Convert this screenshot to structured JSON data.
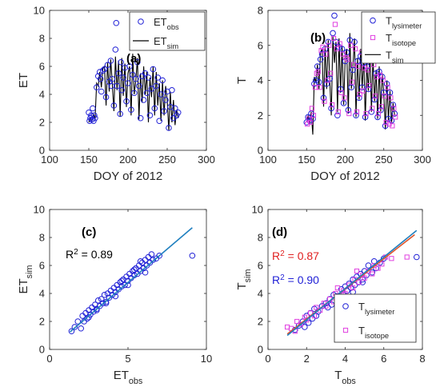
{
  "chart_data": [
    {
      "type": "scatter",
      "panel_label": "(a)",
      "xlabel": "DOY of 2012",
      "ylabel": "ET",
      "xlim": [
        100,
        300
      ],
      "ylim": [
        0,
        10
      ],
      "xticks": [
        "100",
        "150",
        "200",
        "250",
        "300"
      ],
      "yticks": [
        "0",
        "2",
        "4",
        "6",
        "8",
        "10"
      ],
      "legend_position": "top-right",
      "series": [
        {
          "name": "ET",
          "name_sub": "obs",
          "kind": "points",
          "marker": "circle",
          "color": "#1f1fd6",
          "x": [
            150,
            151,
            152,
            153,
            154,
            155,
            156,
            157,
            158,
            160,
            162,
            164,
            165,
            166,
            168,
            170,
            172,
            174,
            176,
            178,
            179,
            180,
            182,
            184,
            185,
            186,
            188,
            190,
            191,
            192,
            194,
            196,
            198,
            200,
            202,
            204,
            206,
            208,
            210,
            212,
            214,
            216,
            218,
            220,
            222,
            224,
            226,
            228,
            230,
            232,
            234,
            236,
            238,
            240,
            242,
            244,
            246,
            248,
            250,
            252,
            254,
            256,
            258,
            260,
            262,
            264
          ],
          "y": [
            2.7,
            2.1,
            2.3,
            2.5,
            2.2,
            3.0,
            2.1,
            2.5,
            2.3,
            4.5,
            5.3,
            5.6,
            5.1,
            4.2,
            5.7,
            5.8,
            3.8,
            6.1,
            4.9,
            6.4,
            4.6,
            5.1,
            3.2,
            7.2,
            9.1,
            4.6,
            5.5,
            2.6,
            6.3,
            4.3,
            5.2,
            5.9,
            3.5,
            4.8,
            6.0,
            2.9,
            5.4,
            4.1,
            5.1,
            6.3,
            4.6,
            2.3,
            5.3,
            3.6,
            5.5,
            4.1,
            5.2,
            2.5,
            4.4,
            5.8,
            3.0,
            4.6,
            5.2,
            2.1,
            4.0,
            5.0,
            2.8,
            3.6,
            4.2,
            1.6,
            3.1,
            4.3,
            2.3,
            3.0,
            2.5,
            2.7
          ]
        },
        {
          "name": "ET",
          "name_sub": "sim",
          "kind": "line",
          "color": "#000000",
          "x": [
            150,
            152,
            154,
            156,
            158,
            160,
            162,
            164,
            166,
            168,
            170,
            172,
            174,
            176,
            178,
            180,
            182,
            184,
            186,
            188,
            190,
            192,
            194,
            196,
            198,
            200,
            202,
            204,
            206,
            208,
            210,
            212,
            214,
            216,
            218,
            220,
            222,
            224,
            226,
            228,
            230,
            232,
            234,
            236,
            238,
            240,
            242,
            244,
            246,
            248,
            250,
            252,
            254,
            256,
            258,
            260,
            262,
            264
          ],
          "y": [
            2.0,
            2.3,
            2.1,
            2.6,
            2.2,
            4.8,
            4.6,
            5.6,
            4.5,
            5.9,
            6.0,
            3.2,
            6.3,
            4.2,
            6.5,
            4.7,
            2.8,
            6.7,
            4.3,
            6.4,
            2.4,
            6.6,
            3.9,
            6.2,
            3.1,
            5.5,
            6.0,
            2.5,
            6.9,
            4.0,
            5.0,
            6.6,
            2.2,
            5.5,
            3.4,
            6.0,
            4.0,
            5.6,
            2.0,
            5.2,
            3.8,
            6.0,
            2.5,
            5.6,
            3.2,
            4.8,
            2.1,
            5.0,
            2.5,
            4.6,
            3.6,
            1.4,
            4.2,
            2.0,
            3.6,
            1.8,
            2.9,
            2.3
          ]
        }
      ]
    },
    {
      "type": "scatter",
      "panel_label": "(b)",
      "xlabel": "DOY of 2012",
      "ylabel": "T",
      "xlim": [
        100,
        300
      ],
      "ylim": [
        0,
        8
      ],
      "xticks": [
        "100",
        "150",
        "200",
        "250",
        "300"
      ],
      "yticks": [
        "0",
        "2",
        "4",
        "6",
        "8"
      ],
      "legend_position": "top-right",
      "series": [
        {
          "name": "T",
          "name_sub": "lysimeter",
          "kind": "points",
          "marker": "circle",
          "color": "#1f1fd6",
          "x": [
            150,
            152,
            154,
            156,
            158,
            160,
            162,
            164,
            166,
            168,
            170,
            172,
            174,
            176,
            178,
            180,
            182,
            184,
            186,
            188,
            190,
            192,
            194,
            196,
            198,
            200,
            202,
            204,
            206,
            208,
            210,
            212,
            214,
            216,
            218,
            220,
            222,
            224,
            226,
            228,
            230,
            232,
            234,
            236,
            238,
            240,
            242,
            244,
            246,
            248,
            250,
            252,
            254,
            256,
            258,
            260,
            262,
            264
          ],
          "y": [
            1.6,
            1.9,
            1.7,
            2.1,
            1.8,
            3.8,
            4.0,
            4.8,
            3.9,
            5.2,
            5.5,
            3.0,
            5.8,
            3.8,
            6.2,
            4.1,
            2.4,
            6.7,
            7.7,
            6.2,
            2.0,
            5.9,
            3.5,
            5.8,
            2.7,
            5.1,
            5.6,
            2.3,
            6.3,
            3.6,
            4.6,
            6.2,
            2.0,
            5.1,
            3.0,
            5.4,
            3.6,
            5.0,
            1.9,
            4.8,
            3.5,
            5.5,
            2.2,
            5.2,
            2.9,
            4.4,
            1.9,
            4.5,
            2.3,
            4.2,
            3.3,
            1.4,
            3.8,
            1.8,
            3.3,
            1.7,
            2.6,
            2.1
          ]
        },
        {
          "name": "T",
          "name_sub": "isotope",
          "kind": "points",
          "marker": "square",
          "color": "#e040e0",
          "x": [
            151,
            153,
            155,
            157,
            159,
            161,
            163,
            165,
            167,
            169,
            171,
            173,
            175,
            177,
            179,
            181,
            183,
            185,
            187,
            189,
            191,
            193,
            195,
            197,
            199,
            201,
            203,
            205,
            207,
            209,
            211,
            213,
            215,
            217,
            219,
            221,
            223,
            225,
            227,
            229,
            231,
            233,
            235,
            237,
            239,
            241,
            243,
            245,
            247,
            249,
            251,
            253,
            255,
            257,
            259,
            261,
            263,
            265
          ],
          "y": [
            1.5,
            1.8,
            1.6,
            2.4,
            2.0,
            3.6,
            4.4,
            4.5,
            3.6,
            5.7,
            5.9,
            2.8,
            5.5,
            4.0,
            6.0,
            4.4,
            2.6,
            6.4,
            7.2,
            5.8,
            2.2,
            6.1,
            3.3,
            5.5,
            3.0,
            5.3,
            5.2,
            2.1,
            6.0,
            3.9,
            4.9,
            5.8,
            2.2,
            4.8,
            3.2,
            5.6,
            3.4,
            4.7,
            2.1,
            4.6,
            3.7,
            5.2,
            2.4,
            4.9,
            3.1,
            4.2,
            2.1,
            4.3,
            2.5,
            4.0,
            3.1,
            1.6,
            3.6,
            1.5,
            3.0,
            1.4,
            2.4,
            1.9
          ]
        },
        {
          "name": "T",
          "name_sub": "sim",
          "kind": "line",
          "color": "#000000",
          "x": [
            150,
            152,
            154,
            156,
            158,
            160,
            162,
            164,
            166,
            168,
            170,
            172,
            174,
            176,
            178,
            180,
            182,
            184,
            186,
            188,
            190,
            192,
            194,
            196,
            198,
            200,
            202,
            204,
            206,
            208,
            210,
            212,
            214,
            216,
            218,
            220,
            222,
            224,
            226,
            228,
            230,
            232,
            234,
            236,
            238,
            240,
            242,
            244,
            246,
            248,
            250,
            252,
            254,
            256,
            258,
            260,
            262,
            264
          ],
          "y": [
            1.6,
            2.0,
            1.5,
            2.2,
            0.9,
            4.2,
            3.9,
            4.9,
            3.5,
            5.6,
            5.8,
            2.5,
            6.0,
            3.5,
            6.3,
            4.0,
            2.0,
            6.5,
            5.0,
            6.2,
            2.2,
            6.4,
            3.3,
            6.0,
            2.6,
            5.3,
            5.8,
            2.1,
            6.7,
            3.5,
            4.8,
            6.4,
            1.9,
            5.3,
            2.9,
            5.8,
            3.5,
            5.4,
            1.7,
            5.0,
            3.4,
            5.8,
            2.2,
            5.4,
            2.8,
            4.6,
            1.8,
            4.8,
            2.2,
            4.4,
            3.2,
            1.2,
            4.0,
            1.7,
            3.4,
            1.5,
            2.7,
            2.0
          ]
        }
      ]
    },
    {
      "type": "scatter",
      "panel_label": "(c)",
      "xlabel": "ET",
      "xlabel_sub": "obs",
      "ylabel": "ET",
      "ylabel_sub": "sim",
      "xlim": [
        0,
        10
      ],
      "ylim": [
        0,
        10
      ],
      "xticks": [
        "0",
        "5",
        "10"
      ],
      "yticks": [
        "0",
        "2",
        "4",
        "6",
        "8",
        "10"
      ],
      "annotations": [
        {
          "text": "R",
          "sup": "2",
          "rest": " = 0.89",
          "color": "#000000"
        }
      ],
      "series": [
        {
          "name": "",
          "kind": "points",
          "marker": "circle",
          "color": "#1f1fd6",
          "x": [
            1.4,
            1.6,
            1.8,
            2.0,
            2.1,
            2.2,
            2.3,
            2.4,
            2.5,
            2.6,
            2.7,
            2.8,
            2.9,
            3.0,
            3.1,
            3.2,
            3.3,
            3.4,
            3.5,
            3.6,
            3.7,
            3.8,
            3.9,
            4.0,
            4.1,
            4.2,
            4.3,
            4.4,
            4.5,
            4.6,
            4.7,
            4.8,
            4.9,
            5.0,
            5.1,
            5.2,
            5.3,
            5.4,
            5.5,
            5.6,
            5.7,
            5.8,
            5.9,
            6.0,
            6.1,
            6.2,
            6.3,
            6.4,
            6.5,
            6.6,
            6.8,
            7.0,
            9.1,
            2.5,
            3.0,
            3.6,
            4.2,
            4.6,
            5.0,
            5.4,
            5.8,
            6.1
          ],
          "y": [
            1.3,
            1.6,
            2.0,
            1.5,
            2.4,
            2.0,
            2.6,
            2.2,
            2.8,
            2.5,
            3.0,
            2.7,
            3.2,
            2.9,
            3.5,
            3.1,
            3.6,
            3.3,
            3.9,
            3.4,
            4.0,
            3.7,
            4.2,
            3.9,
            4.4,
            4.1,
            4.6,
            4.3,
            4.8,
            4.5,
            5.0,
            4.6,
            5.2,
            4.9,
            5.4,
            5.1,
            5.6,
            5.3,
            5.8,
            5.4,
            6.0,
            5.6,
            6.2,
            5.8,
            6.4,
            6.0,
            6.6,
            6.2,
            6.8,
            6.4,
            6.5,
            6.7,
            6.7,
            2.3,
            2.8,
            3.3,
            3.8,
            4.9,
            4.6,
            5.7,
            6.3,
            5.5
          ]
        },
        {
          "name": "",
          "kind": "fit",
          "color": "#1f7fbf",
          "x": [
            1.3,
            9.1
          ],
          "y": [
            1.25,
            8.7
          ]
        }
      ]
    },
    {
      "type": "scatter",
      "panel_label": "(d)",
      "xlabel": "T",
      "xlabel_sub": "obs",
      "ylabel": "T",
      "ylabel_sub": "sim",
      "xlim": [
        0,
        8
      ],
      "ylim": [
        0,
        10
      ],
      "xticks": [
        "0",
        "2",
        "4",
        "6",
        "8"
      ],
      "yticks": [
        "0",
        "2",
        "4",
        "6",
        "8",
        "10"
      ],
      "legend_position": "bottom-right",
      "annotations": [
        {
          "text": "R",
          "sup": "2",
          "rest": " = 0.87",
          "color": "#e02020"
        },
        {
          "text": "R",
          "sup": "2",
          "rest": " = 0.90",
          "color": "#1f1fd6"
        }
      ],
      "series": [
        {
          "name": "T",
          "name_sub": "lysimeter",
          "kind": "points",
          "marker": "circle",
          "color": "#1f1fd6",
          "x": [
            1.4,
            1.6,
            1.8,
            1.9,
            2.0,
            2.1,
            2.2,
            2.3,
            2.4,
            2.6,
            2.8,
            3.0,
            3.2,
            3.3,
            3.4,
            3.6,
            3.8,
            3.9,
            4.0,
            4.1,
            4.2,
            4.3,
            4.4,
            4.5,
            4.6,
            4.7,
            4.8,
            4.9,
            5.0,
            5.1,
            5.2,
            5.4,
            5.5,
            5.6,
            5.8,
            6.0,
            7.7,
            2.5,
            3.1,
            3.7,
            4.4,
            4.9
          ],
          "y": [
            1.4,
            1.7,
            2.0,
            1.6,
            2.4,
            1.9,
            2.6,
            2.2,
            2.9,
            2.7,
            3.1,
            3.3,
            3.6,
            3.2,
            3.9,
            3.8,
            4.3,
            3.9,
            4.5,
            4.2,
            4.7,
            4.4,
            5.0,
            4.6,
            5.2,
            4.8,
            5.4,
            5.0,
            5.6,
            5.3,
            6.0,
            5.5,
            6.3,
            5.8,
            6.2,
            6.5,
            6.6,
            2.4,
            3.0,
            3.5,
            4.1,
            4.8
          ]
        },
        {
          "name": "T",
          "name_sub": "isotope",
          "kind": "points",
          "marker": "square",
          "color": "#e040e0",
          "x": [
            1.0,
            1.2,
            1.4,
            1.5,
            1.7,
            1.9,
            2.0,
            2.2,
            2.4,
            2.5,
            2.7,
            2.9,
            3.0,
            3.2,
            3.4,
            3.5,
            3.7,
            3.9,
            4.0,
            4.2,
            4.4,
            4.5,
            4.7,
            4.9,
            5.0,
            5.2,
            5.4,
            5.5,
            5.7,
            5.9,
            6.1,
            6.4,
            7.2,
            3.6,
            4.6
          ],
          "y": [
            1.6,
            1.5,
            1.3,
            2.0,
            1.8,
            2.3,
            2.1,
            2.6,
            2.4,
            3.0,
            2.8,
            3.3,
            3.1,
            3.6,
            3.4,
            4.0,
            3.8,
            4.2,
            4.0,
            4.6,
            4.4,
            5.0,
            4.8,
            5.3,
            5.1,
            5.6,
            5.4,
            6.0,
            5.8,
            6.1,
            6.6,
            6.5,
            6.6,
            4.4,
            5.6
          ]
        },
        {
          "name": "",
          "kind": "fit",
          "color": "#e0552a",
          "x": [
            1.0,
            7.6
          ],
          "y": [
            1.1,
            8.2
          ]
        },
        {
          "name": "",
          "kind": "fit",
          "color": "#1f7fbf",
          "x": [
            1.0,
            7.7
          ],
          "y": [
            1.0,
            8.5
          ]
        }
      ]
    }
  ]
}
